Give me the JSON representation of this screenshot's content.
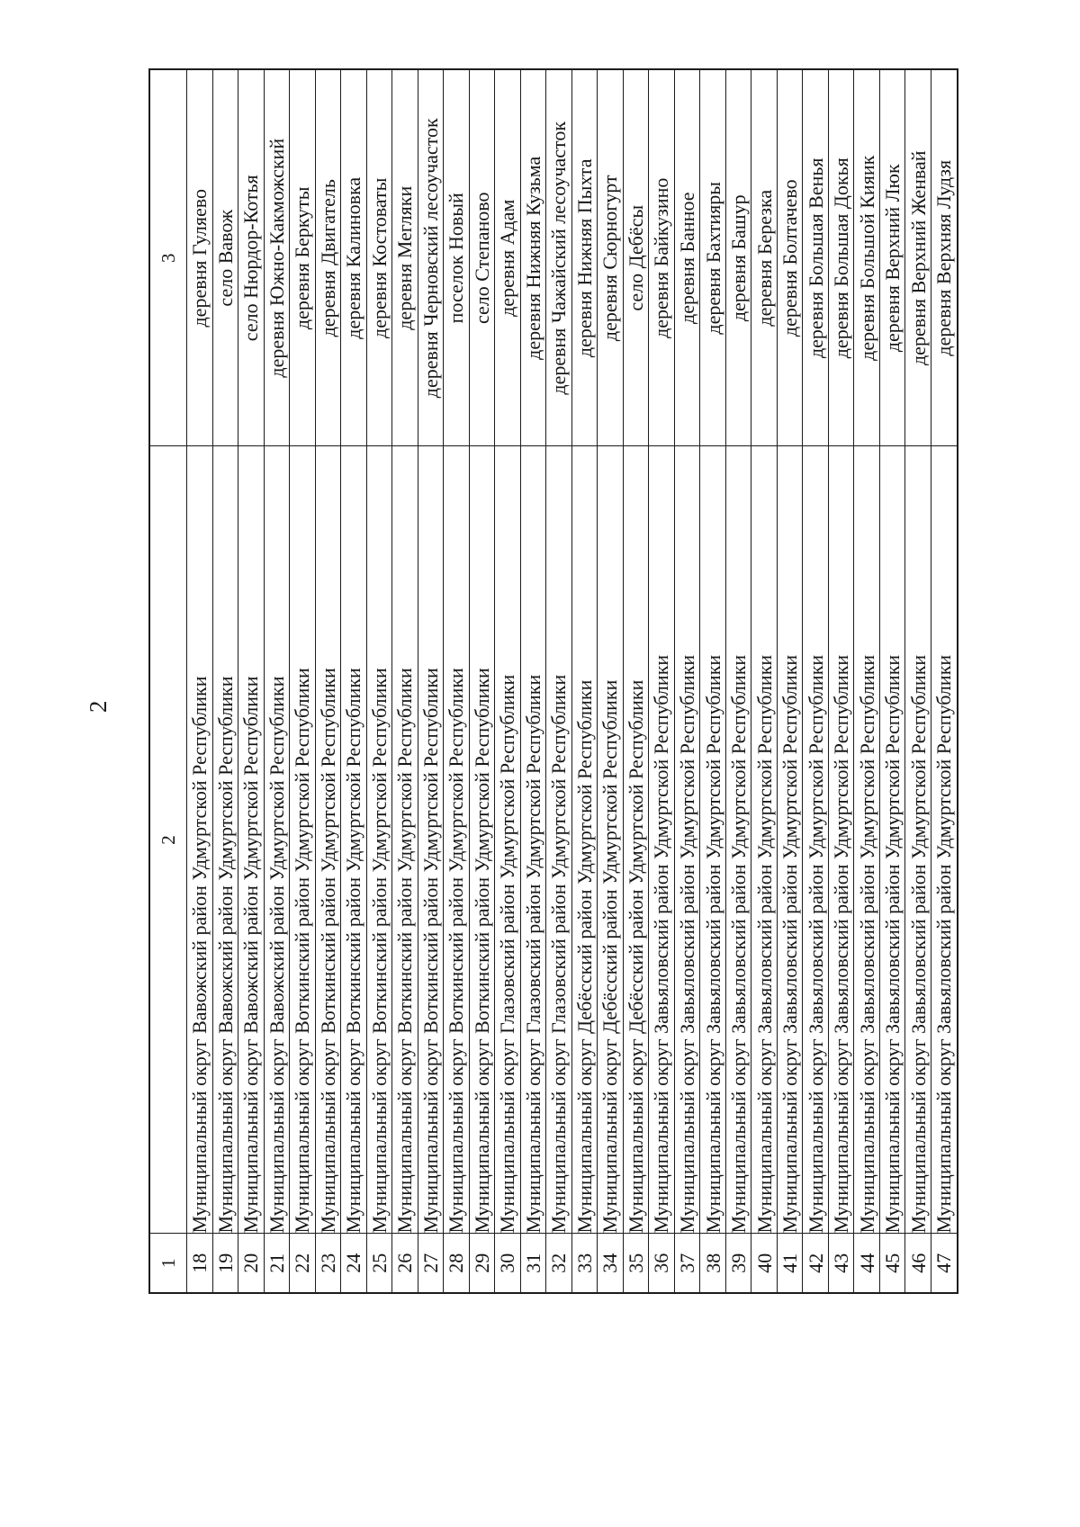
{
  "page": {
    "number": "2"
  },
  "table": {
    "headers": [
      "1",
      "2",
      "3"
    ],
    "rows": [
      {
        "num": "18",
        "municipality": "Муниципальный округ Вавожский район Удмуртской Республики",
        "settlement": "деревня Гуляево"
      },
      {
        "num": "19",
        "municipality": "Муниципальный округ Вавожский район Удмуртской Республики",
        "settlement": "село Вавож"
      },
      {
        "num": "20",
        "municipality": "Муниципальный округ Вавожский район Удмуртской Республики",
        "settlement": "село Нюрдор-Котья"
      },
      {
        "num": "21",
        "municipality": "Муниципальный округ Вавожский район Удмуртской Республики",
        "settlement": "деревня Южно-Какможский"
      },
      {
        "num": "22",
        "municipality": "Муниципальный округ Воткинский район Удмуртской Республики",
        "settlement": "деревня Беркуты"
      },
      {
        "num": "23",
        "municipality": "Муниципальный округ Воткинский район Удмуртской Республики",
        "settlement": "деревня Двигатель"
      },
      {
        "num": "24",
        "municipality": "Муниципальный округ Воткинский район Удмуртской Республики",
        "settlement": "деревня Калиновка"
      },
      {
        "num": "25",
        "municipality": "Муниципальный округ Воткинский район Удмуртской Республики",
        "settlement": "деревня Костоваты"
      },
      {
        "num": "26",
        "municipality": "Муниципальный округ Воткинский район Удмуртской Республики",
        "settlement": "деревня Мегляки"
      },
      {
        "num": "27",
        "municipality": "Муниципальный округ Воткинский район Удмуртской Республики",
        "settlement": "деревня Черновский лесоучасток"
      },
      {
        "num": "28",
        "municipality": "Муниципальный округ Воткинский район Удмуртской Республики",
        "settlement": "поселок Новый"
      },
      {
        "num": "29",
        "municipality": "Муниципальный округ Воткинский район Удмуртской Республики",
        "settlement": "село Степаново"
      },
      {
        "num": "30",
        "municipality": "Муниципальный округ Глазовский район Удмуртской Республики",
        "settlement": "деревня Адам"
      },
      {
        "num": "31",
        "municipality": "Муниципальный округ Глазовский район Удмуртской Республики",
        "settlement": "деревня Нижняя Кузьма"
      },
      {
        "num": "32",
        "municipality": "Муниципальный округ Глазовский район Удмуртской Республики",
        "settlement": "деревня Чажайский лесоучасток"
      },
      {
        "num": "33",
        "municipality": "Муниципальный округ Дебёсский район Удмуртской Республики",
        "settlement": "деревня Нижняя Пыхта"
      },
      {
        "num": "34",
        "municipality": "Муниципальный округ Дебёсский район Удмуртской Республики",
        "settlement": "деревня Сюрногурт"
      },
      {
        "num": "35",
        "municipality": "Муниципальный округ Дебёсский район Удмуртской Республики",
        "settlement": "село Дебёсы"
      },
      {
        "num": "36",
        "municipality": "Муниципальный округ Завьяловский район Удмуртской Республики",
        "settlement": "деревня Байкузино"
      },
      {
        "num": "37",
        "municipality": "Муниципальный округ Завьяловский район Удмуртской Республики",
        "settlement": "деревня Банное"
      },
      {
        "num": "38",
        "municipality": "Муниципальный округ Завьяловский район Удмуртской Республики",
        "settlement": "деревня Бахтияры"
      },
      {
        "num": "39",
        "municipality": "Муниципальный округ Завьяловский район Удмуртской Республики",
        "settlement": "деревня Башур"
      },
      {
        "num": "40",
        "municipality": "Муниципальный округ Завьяловский район Удмуртской Республики",
        "settlement": "деревня Березка"
      },
      {
        "num": "41",
        "municipality": "Муниципальный округ Завьяловский район Удмуртской Республики",
        "settlement": "деревня Болтачево"
      },
      {
        "num": "42",
        "municipality": "Муниципальный округ Завьяловский район Удмуртской Республики",
        "settlement": "деревня Большая Венья"
      },
      {
        "num": "43",
        "municipality": "Муниципальный округ Завьяловский район Удмуртской Республики",
        "settlement": "деревня Большая Докья"
      },
      {
        "num": "44",
        "municipality": "Муниципальный округ Завьяловский район Удмуртской Республики",
        "settlement": "деревня Большой Кияик"
      },
      {
        "num": "45",
        "municipality": "Муниципальный округ Завьяловский район Удмуртской Республики",
        "settlement": "деревня Верхний Люк"
      },
      {
        "num": "46",
        "municipality": "Муниципальный округ Завьяловский район Удмуртской Республики",
        "settlement": "деревня Верхний Женвай"
      },
      {
        "num": "47",
        "municipality": "Муниципальный округ Завьяловский район Удмуртской Республики",
        "settlement": "деревня Верхняя Лудзя"
      }
    ]
  }
}
